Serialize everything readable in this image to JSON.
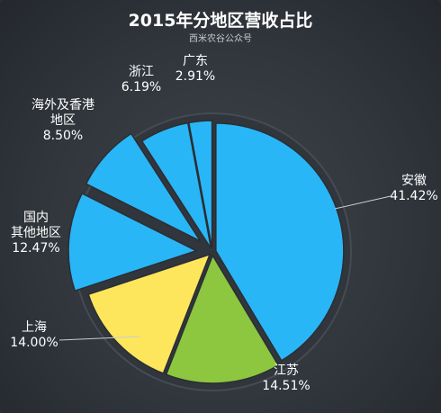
{
  "chart_data": {
    "type": "pie",
    "title": "2015年分地区营收占比",
    "subtitle": "西米农谷公众号",
    "slices": [
      {
        "name": "安徽",
        "value": 41.42,
        "value_label": "41.42%",
        "color": "#29b6f6"
      },
      {
        "name": "江苏",
        "value": 14.51,
        "value_label": "14.51%",
        "color": "#8dc63f"
      },
      {
        "name": "上海",
        "value": 14.0,
        "value_label": "14.00%",
        "color": "#fde65c"
      },
      {
        "name": "国内其他地区",
        "value": 12.47,
        "value_label": "12.47%",
        "color": "#29b6f6"
      },
      {
        "name": "海外及香港地区",
        "value": 8.5,
        "value_label": "8.50%",
        "color": "#29b6f6"
      },
      {
        "name": "浙江",
        "value": 6.19,
        "value_label": "6.19%",
        "color": "#29b6f6"
      },
      {
        "name": "广东",
        "value": 2.91,
        "value_label": "2.91%",
        "color": "#29b6f6"
      }
    ]
  }
}
